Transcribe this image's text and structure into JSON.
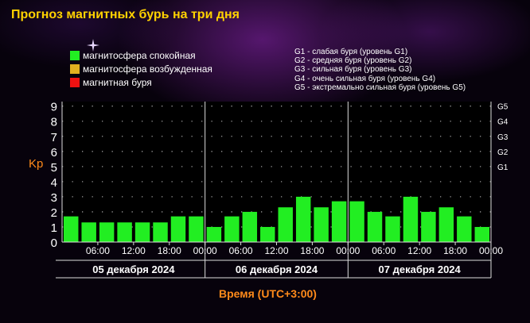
{
  "title": "Прогноз магнитных бурь на три дня",
  "legend": [
    {
      "label": "магнитосфера спокойная",
      "color": "#22ee22"
    },
    {
      "label": "магнитосфера возбужденная",
      "color": "#e0b020"
    },
    {
      "label": "магнитная буря",
      "color": "#ee1111"
    }
  ],
  "storm_levels": [
    "G1 - слабая буря (уровень G1)",
    "G2 - средняя буря (уровень G2)",
    "G3 - сильная буря (уровень G3)",
    "G4 - очень сильная буря (уровень G4)",
    "G5 - экстремально сильная буря (уровень G5)"
  ],
  "chart_data": {
    "type": "bar",
    "ylabel": "Kp",
    "xlabel": "Время (UTC+3:00)",
    "ylim": [
      0,
      9
    ],
    "yticks": [
      "0",
      "1",
      "2",
      "3",
      "4",
      "5",
      "6",
      "7",
      "8",
      "9"
    ],
    "right_axis": [
      {
        "label": "G1",
        "kp": 5
      },
      {
        "label": "G2",
        "kp": 6
      },
      {
        "label": "G3",
        "kp": 7
      },
      {
        "label": "G4",
        "kp": 8
      },
      {
        "label": "G5",
        "kp": 9
      }
    ],
    "grid": true,
    "bar_color": "#22ee22",
    "days": [
      "05 декабря 2024",
      "06 декабря 2024",
      "07 декабря 2024"
    ],
    "time_labels": [
      "06:00",
      "12:00",
      "18:00",
      "00:00"
    ],
    "values": [
      1.7,
      1.3,
      1.3,
      1.3,
      1.3,
      1.3,
      1.7,
      1.7,
      1.0,
      1.7,
      2.0,
      1.0,
      2.3,
      3.0,
      2.3,
      2.7,
      2.7,
      2.0,
      1.7,
      3.0,
      2.0,
      2.3,
      1.7,
      1.0
    ]
  }
}
